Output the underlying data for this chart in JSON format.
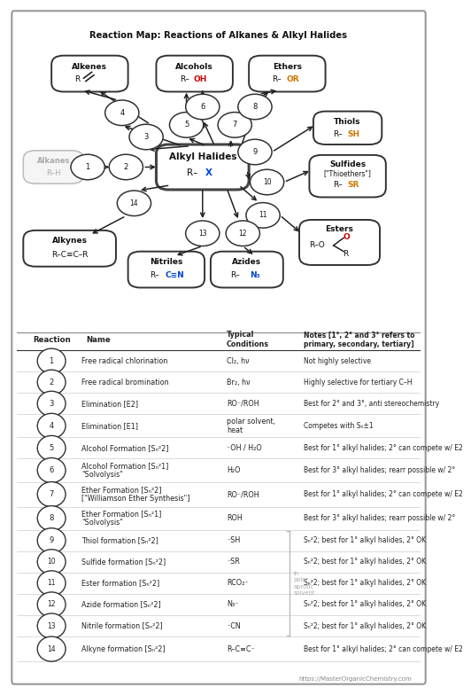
{
  "title": "Reaction Map: Reactions of Alkanes & Alkyl Halides",
  "bg_color": "#ffffff",
  "reactions": [
    {
      "num": 1,
      "name": "Free radical chlorination",
      "cond": "Cl₂, hν",
      "note": "Not highly selective"
    },
    {
      "num": 2,
      "name": "Free radical bromination",
      "cond": "Br₂, hν",
      "note": "Highly selective for tertiary C–H"
    },
    {
      "num": 3,
      "name": "Elimination [E2]",
      "cond": "RO⁻/ROH",
      "note": "Best for 2° and 3°, anti stereochemistry"
    },
    {
      "num": 4,
      "name": "Elimination [E1]",
      "cond": "polar solvent,\nheat",
      "note": "Competes with Sₙ±1"
    },
    {
      "num": 5,
      "name": "Alcohol Formation [Sₙ²2]",
      "cond": "⁻OH / H₂O",
      "note": "Best for 1° alkyl halides; 2° can compete w/ E2"
    },
    {
      "num": 6,
      "name": "Alcohol Formation [Sₙ²1]\n\"Solvolysis\"",
      "cond": "H₂O",
      "note": "Best for 3° alkyl halides; rearr possible w/ 2°"
    },
    {
      "num": 7,
      "name": "Ether Formation [Sₙ²2]\n[\"Williamson Ether Synthesis\"]",
      "cond": "RO⁻/ROH",
      "note": "Best for 1° alkyl halides; 2° can compete w/ E2"
    },
    {
      "num": 8,
      "name": "Ether Formation [Sₙ²1]\n\"Solvolysis\"",
      "cond": "ROH",
      "note": "Best for 3° alkyl halides; rearr possible w/ 2°"
    },
    {
      "num": 9,
      "name": "Thiol formation [Sₙ²2]",
      "cond": "⁻SH",
      "note": "Sₙ²2; best for 1° alkyl halides, 2° OK"
    },
    {
      "num": 10,
      "name": "Sulfide formation [Sₙ²2]",
      "cond": "⁻SR",
      "note": "Sₙ²2; best for 1° alkyl halides, 2° OK"
    },
    {
      "num": 11,
      "name": "Ester formation [Sₙ²2]",
      "cond": "RCO₂⁻",
      "note": "Sₙ²2; best for 1° alkyl halides, 2° OK"
    },
    {
      "num": 12,
      "name": "Azide formation [Sₙ²2]",
      "cond": "N₃⁻",
      "note": "Sₙ²2; best for 1° alkyl halides, 2° OK"
    },
    {
      "num": 13,
      "name": "Nitrile formation [Sₙ²2]",
      "cond": "⁻CN",
      "note": "Sₙ²2; best for 1° alkyl halides, 2° OK"
    },
    {
      "num": 14,
      "name": "Alkyne formation [Sₙ²2]",
      "cond": "R–C≡C⁻",
      "note": "Best for 1° alkyl halides; 2° can compete w/ E2"
    }
  ]
}
